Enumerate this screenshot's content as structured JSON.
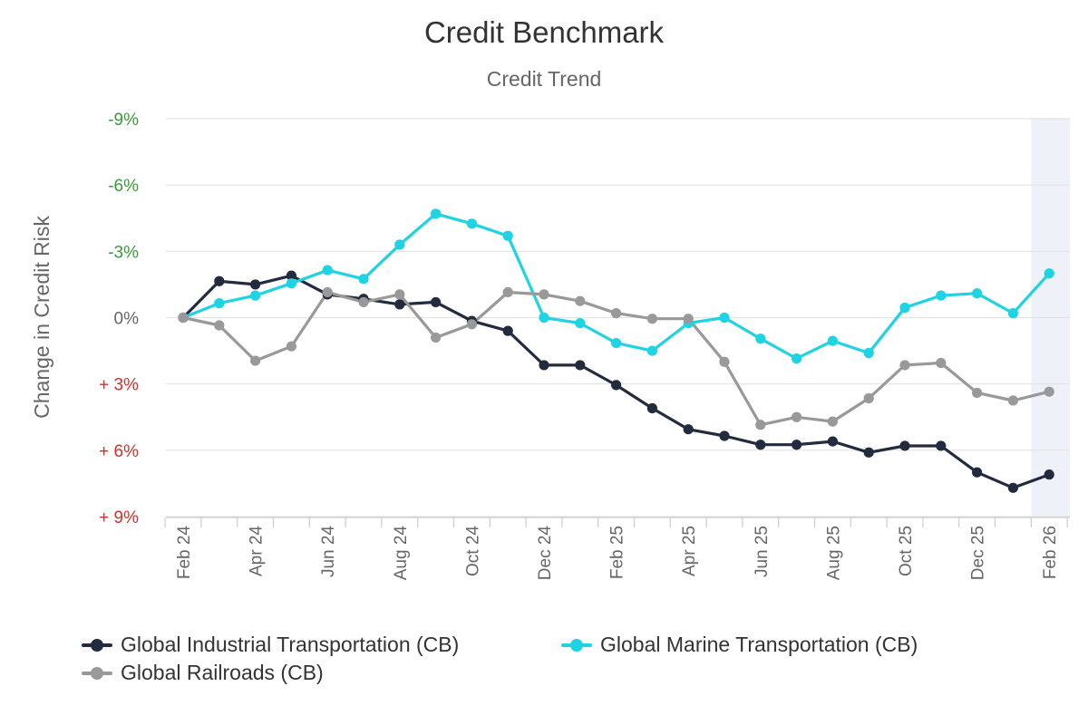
{
  "chart_data": {
    "type": "line",
    "title": "Credit Benchmark",
    "subtitle": "Credit Trend",
    "ylabel": "Change in Credit Risk",
    "xlabel": "",
    "y_axis_reversed": true,
    "ylim": [
      -9,
      9
    ],
    "yticks": [
      {
        "value": -9,
        "label": "-9%",
        "color": "#3a9a3a"
      },
      {
        "value": -6,
        "label": "-6%",
        "color": "#3a9a3a"
      },
      {
        "value": -3,
        "label": "-3%",
        "color": "#3a9a3a"
      },
      {
        "value": 0,
        "label": "0%",
        "color": "#666666"
      },
      {
        "value": 3,
        "label": "+ 3%",
        "color": "#d0302a"
      },
      {
        "value": 6,
        "label": "+ 6%",
        "color": "#d0302a"
      },
      {
        "value": 9,
        "label": "+ 9%",
        "color": "#d0302a"
      }
    ],
    "x": [
      "Feb 24",
      "Mar 24",
      "Apr 24",
      "May 24",
      "Jun 24",
      "Jul 24",
      "Aug 24",
      "Sep 24",
      "Oct 24",
      "Nov 24",
      "Dec 24",
      "Jan 25",
      "Feb 25",
      "Mar 25",
      "Apr 25",
      "May 25",
      "Jun 25",
      "Jul 25",
      "Aug 25",
      "Sep 25",
      "Oct 25",
      "Nov 25",
      "Dec 25",
      "Jan 26",
      "Feb 26"
    ],
    "xtick_labels": [
      "Feb 24",
      "Apr 24",
      "Jun 24",
      "Aug 24",
      "Oct 24",
      "Dec 24",
      "Feb 25",
      "Apr 25",
      "Jun 25",
      "Aug 25",
      "Oct 25",
      "Dec 25",
      "Feb 26"
    ],
    "highlight_last_period": true,
    "grid": true,
    "legend_position": "bottom-left",
    "series": [
      {
        "name": "Global Industrial Transportation (CB)",
        "color": "#232b3e",
        "values": [
          0,
          -1.65,
          -1.5,
          -1.9,
          -1.05,
          -0.85,
          -0.6,
          -0.7,
          0.15,
          0.6,
          2.15,
          2.15,
          3.05,
          4.1,
          5.05,
          5.35,
          5.75,
          5.75,
          5.6,
          6.1,
          5.8,
          5.8,
          7.0,
          7.7,
          7.1
        ]
      },
      {
        "name": "Global Marine Transportation (CB)",
        "color": "#1ed3e3",
        "values": [
          0,
          -0.65,
          -1.0,
          -1.55,
          -2.15,
          -1.75,
          -3.3,
          -4.7,
          -4.25,
          -3.7,
          0,
          0.25,
          1.15,
          1.5,
          0.25,
          0,
          0.95,
          1.85,
          1.05,
          1.6,
          -0.45,
          -1.0,
          -1.1,
          -0.2,
          -2.0
        ]
      },
      {
        "name": "Global Railroads (CB)",
        "color": "#999999",
        "values": [
          0,
          0.35,
          1.95,
          1.3,
          -1.15,
          -0.7,
          -1.05,
          0.9,
          0.3,
          -1.15,
          -1.05,
          -0.75,
          -0.2,
          0.05,
          0.05,
          2.0,
          4.85,
          4.5,
          4.7,
          3.65,
          2.15,
          2.05,
          3.4,
          3.75,
          3.35
        ]
      }
    ]
  }
}
